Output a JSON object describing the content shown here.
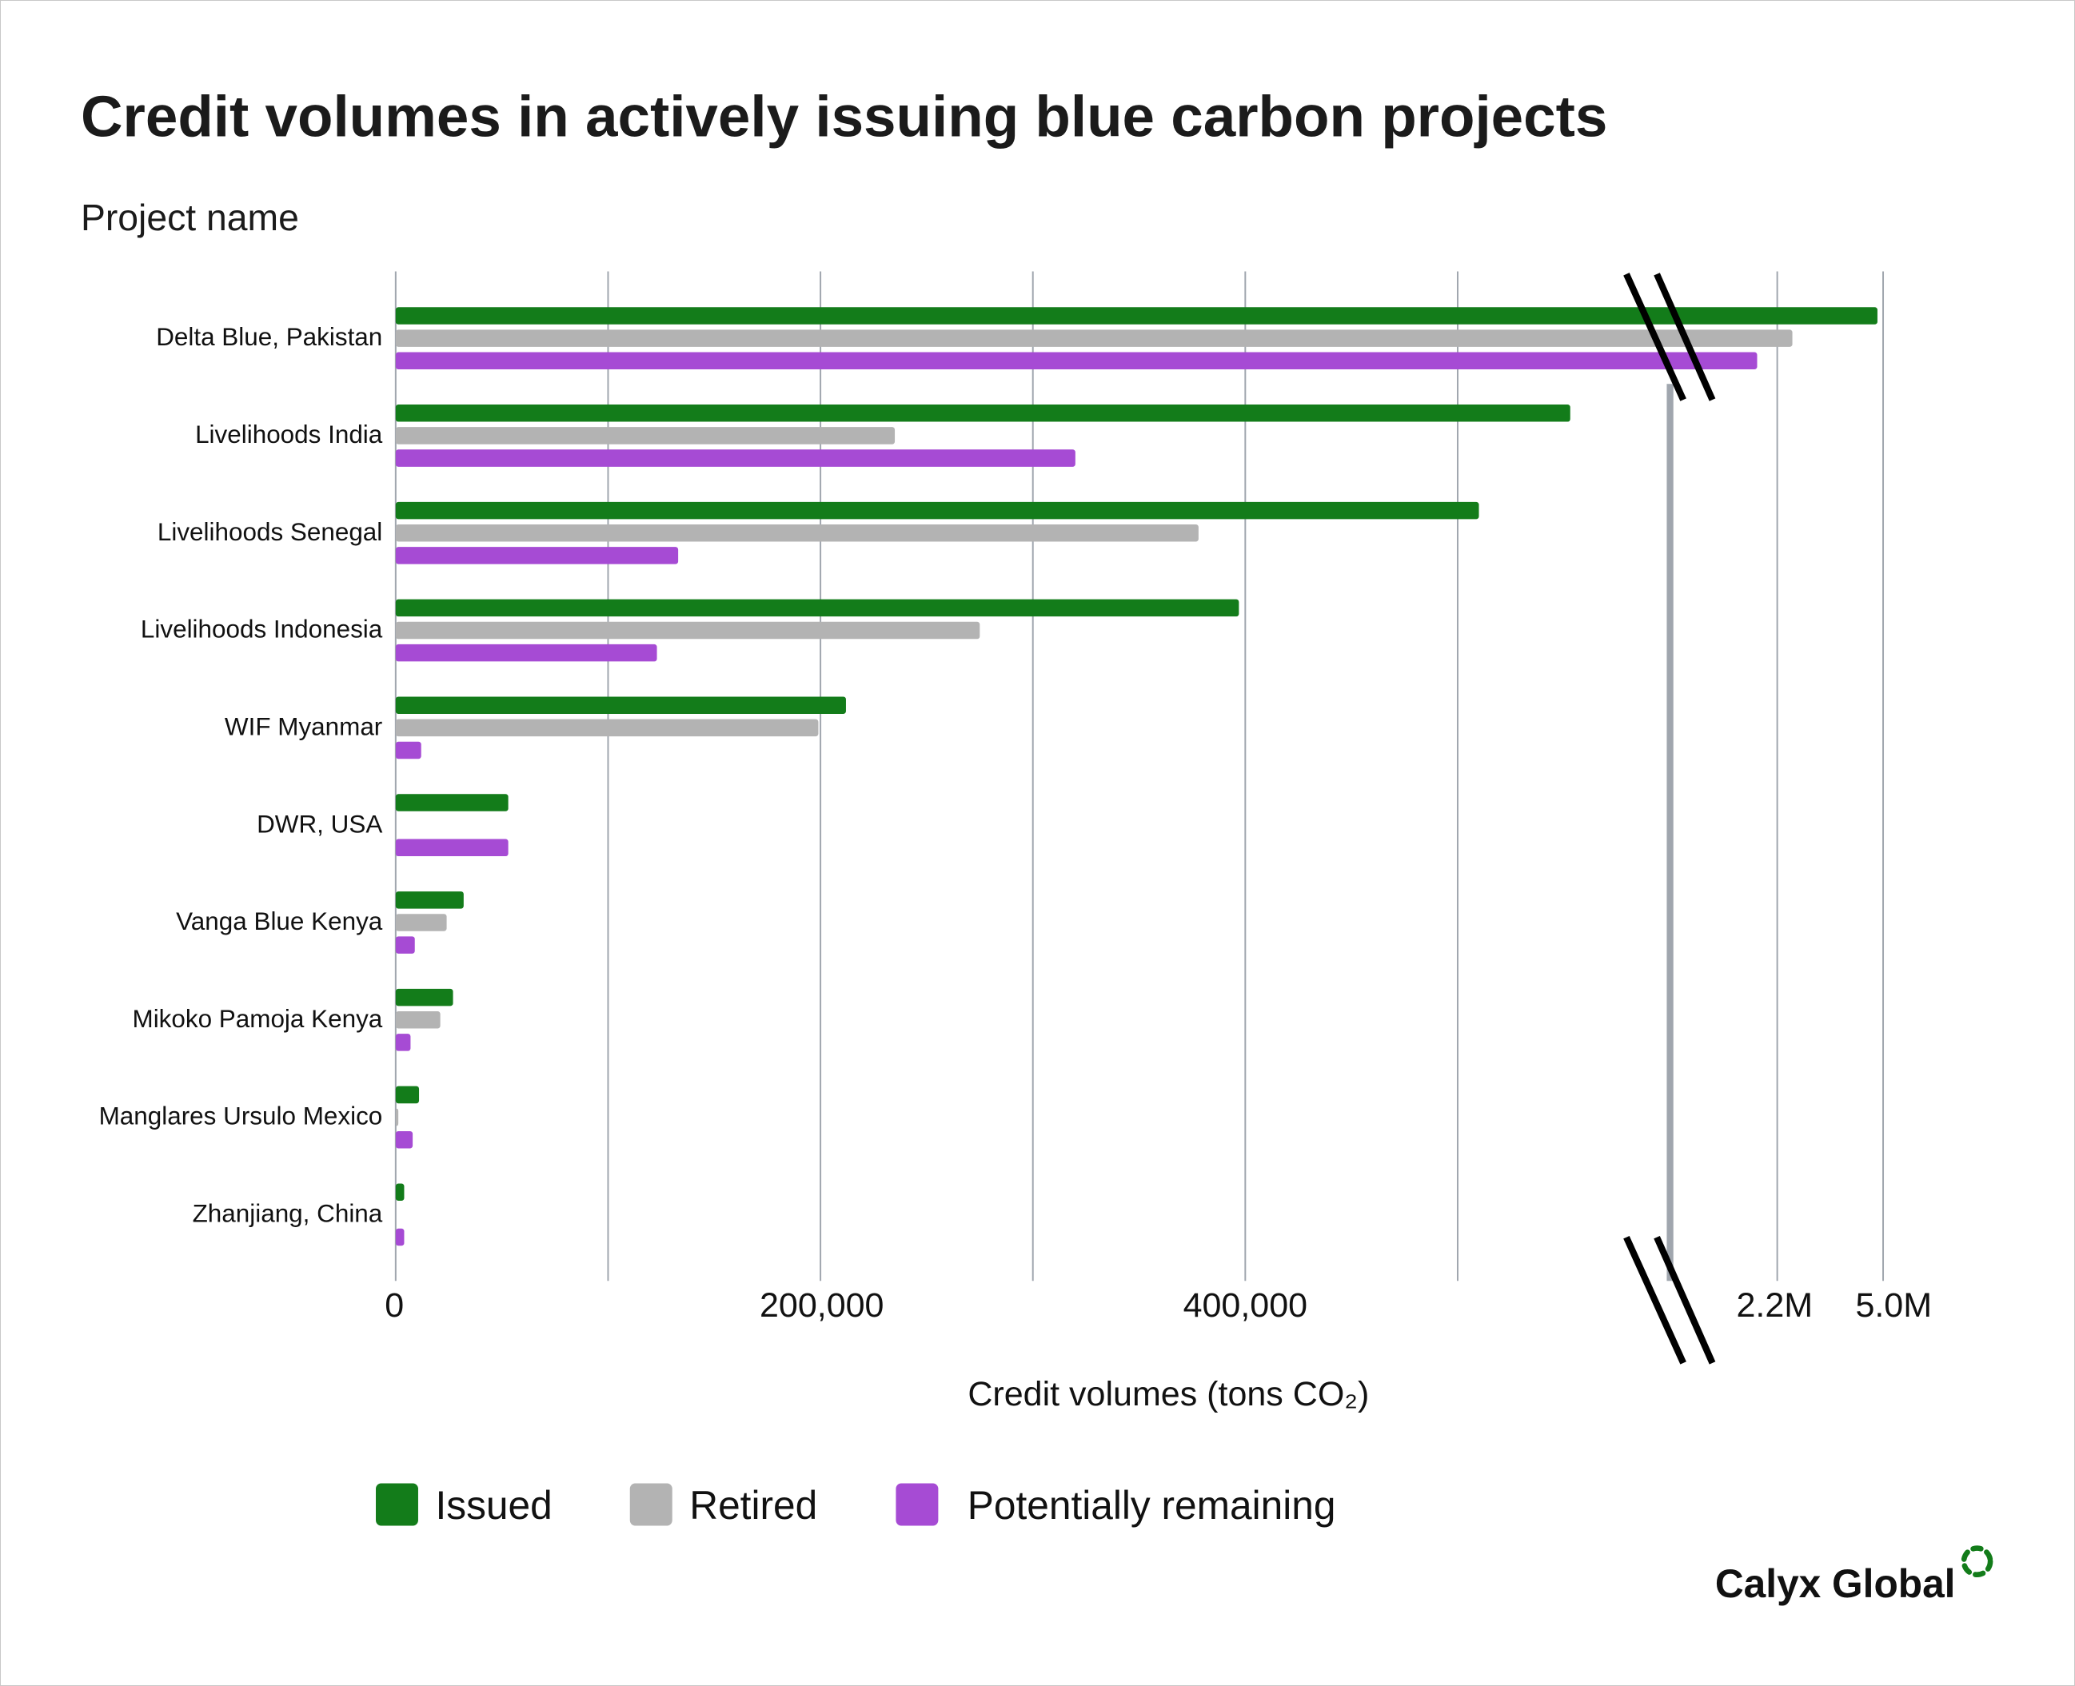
{
  "chart_data": {
    "type": "bar",
    "orientation": "horizontal",
    "title": "Credit volumes in actively issuing blue carbon projects",
    "ylabel": "Project name",
    "xlabel": "Credit volumes (tons CO₂)",
    "categories": [
      "Delta Blue, Pakistan",
      "Livelihoods India",
      "Livelihoods Senegal",
      "Livelihoods Indonesia",
      "WIF Myanmar",
      "DWR, USA",
      "Vanga Blue Kenya",
      "Mikoko Pamoja Kenya",
      "Manglares Ursulo Mexico",
      "Zhanjiang, China"
    ],
    "series": [
      {
        "name": "Issued",
        "color": "#137c1a",
        "values": [
          4850000,
          553000,
          510000,
          397000,
          212000,
          53000,
          32000,
          27000,
          11000,
          4000
        ]
      },
      {
        "name": "Retired",
        "color": "#b3b3b3",
        "values": [
          2600000,
          235000,
          378000,
          275000,
          199000,
          0,
          24000,
          21000,
          1000,
          0
        ]
      },
      {
        "name": "Potentially remaining",
        "color": "#a64bd4",
        "values": [
          1900000,
          320000,
          133000,
          123000,
          12000,
          53000,
          9000,
          7000,
          8000,
          4000
        ]
      }
    ],
    "x_ticks": [
      "0",
      "200,000",
      "400,000",
      "2.2M",
      "5.0M"
    ],
    "axis_break": "between 600,000 and 2.2M",
    "grid": true,
    "legend": "bottom"
  },
  "logo": {
    "text": "Calyx Global",
    "color": "#137c1a"
  }
}
